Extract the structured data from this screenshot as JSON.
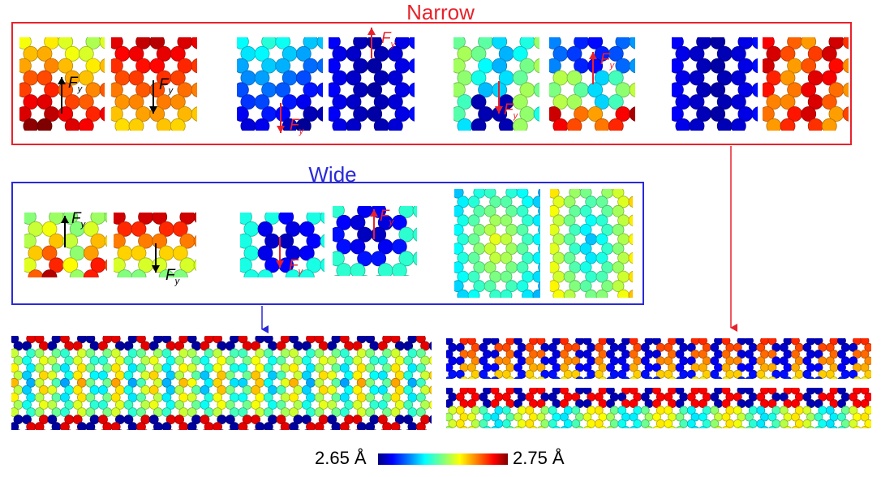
{
  "titles": {
    "narrow": "Narrow",
    "wide": "Wide"
  },
  "force_label": {
    "base": "F",
    "sub": "y"
  },
  "colorbar": {
    "min_label": "2.65 Å",
    "max_label": "2.75 Å"
  },
  "colors": {
    "narrow_frame": "#e8222b",
    "wide_frame": "#2a2ad8",
    "colormap": [
      "#00007f",
      "#0000ff",
      "#007fff",
      "#00ffff",
      "#7fff7f",
      "#ffff00",
      "#ff7f00",
      "#ff0000",
      "#7f0000"
    ]
  },
  "panels": {
    "narrow": [
      {
        "id": "n1",
        "pattern": "warm-gradient",
        "force": "up"
      },
      {
        "id": "n2",
        "pattern": "warm-gradient-dark-top",
        "force": "down"
      },
      {
        "id": "n3",
        "pattern": "cool-gradient",
        "force": "down"
      },
      {
        "id": "n4",
        "pattern": "deep-blue",
        "force": "up"
      },
      {
        "id": "n5",
        "pattern": "blue-pocket-bottom",
        "force": "down"
      },
      {
        "id": "n6",
        "pattern": "mixed-blue-top-red-bottom",
        "force": "up"
      },
      {
        "id": "n7",
        "pattern": "deep-blue",
        "force": "none"
      },
      {
        "id": "n8",
        "pattern": "warm-orange",
        "force": "none"
      }
    ],
    "wide": [
      {
        "id": "w1",
        "pattern": "warm-mixed",
        "force": "up"
      },
      {
        "id": "w2",
        "pattern": "dark-red-top",
        "force": "down"
      },
      {
        "id": "w3",
        "pattern": "blue-cluster",
        "force": "down"
      },
      {
        "id": "w4",
        "pattern": "blue-cluster-top",
        "force": "up"
      },
      {
        "id": "w5",
        "pattern": "yellow-center",
        "force": "none"
      },
      {
        "id": "w6",
        "pattern": "cyan-center",
        "force": "none"
      }
    ],
    "strips": [
      "wide-ribbon",
      "narrow-ribbon-top",
      "narrow-ribbon-bottom"
    ]
  }
}
